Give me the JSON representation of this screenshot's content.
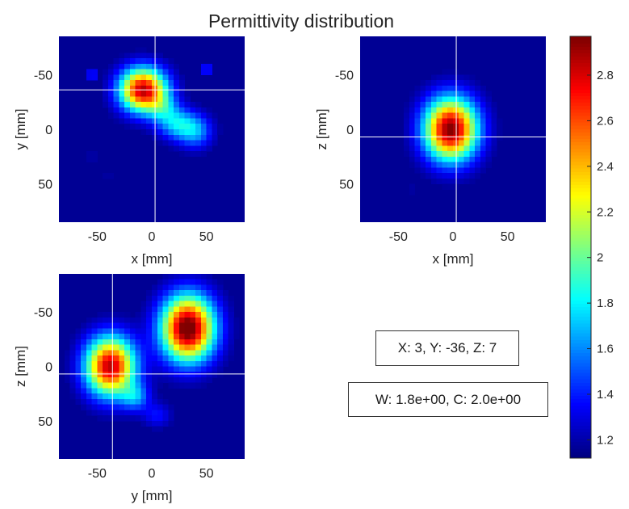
{
  "title": "Permittivity distribution",
  "coordinate_readout": "X: 3, Y: -36, Z: 7",
  "window_readout": "W: 1.8e+00, C: 2.0e+00",
  "colormap": "jet",
  "chart_data": [
    {
      "type": "heatmap",
      "name": "axial-slice",
      "xlabel": "x [mm]",
      "ylabel": "y [mm]",
      "xlim": [
        -85,
        85
      ],
      "ylim": [
        -85,
        85
      ],
      "y_reversed": true,
      "xticks": [
        -50,
        0,
        50
      ],
      "yticks": [
        -50,
        0,
        50
      ],
      "crosshair": {
        "x": 3,
        "y": -36
      },
      "blobs": [
        {
          "cx": -8,
          "cy": -36,
          "sx": 15,
          "sy": 14,
          "amp": 1.75
        },
        {
          "cx": 22,
          "cy": -5,
          "sx": 12,
          "sy": 10,
          "amp": 0.55
        },
        {
          "cx": 40,
          "cy": 2,
          "sx": 11,
          "sy": 11,
          "amp": 0.5
        },
        {
          "cx": 10,
          "cy": -20,
          "sx": 10,
          "sy": 9,
          "amp": 0.35
        },
        {
          "cx": -55,
          "cy": -50,
          "sx": 2.5,
          "sy": 2.5,
          "amp": 0.55
        },
        {
          "cx": 50,
          "cy": -55,
          "sx": 2.5,
          "sy": 2.5,
          "amp": 0.6
        },
        {
          "cx": -55,
          "cy": 25,
          "sx": 5,
          "sy": 5,
          "amp": 0.08
        },
        {
          "cx": -40,
          "cy": 42,
          "sx": 4,
          "sy": 4,
          "amp": 0.07
        }
      ]
    },
    {
      "type": "heatmap",
      "name": "coronal-slice",
      "xlabel": "x [mm]",
      "ylabel": "z [mm]",
      "xlim": [
        -85,
        85
      ],
      "ylim": [
        -85,
        85
      ],
      "y_reversed": true,
      "xticks": [
        -50,
        0,
        50
      ],
      "yticks": [
        -50,
        0,
        50
      ],
      "crosshair": {
        "x": 3,
        "y": 7
      },
      "blobs": [
        {
          "cx": -2,
          "cy": 0,
          "sx": 17,
          "sy": 20,
          "amp": 1.85
        },
        {
          "cx": -38,
          "cy": 55,
          "sx": 4,
          "sy": 6,
          "amp": 0.06
        }
      ]
    },
    {
      "type": "heatmap",
      "name": "sagittal-slice",
      "xlabel": "y [mm]",
      "ylabel": "z [mm]",
      "xlim": [
        -85,
        85
      ],
      "ylim": [
        -85,
        85
      ],
      "y_reversed": true,
      "xticks": [
        -50,
        0,
        50
      ],
      "yticks": [
        -50,
        0,
        50
      ],
      "crosshair": {
        "x": -36,
        "y": 7
      },
      "blobs": [
        {
          "cx": -38,
          "cy": 0,
          "sx": 16,
          "sy": 19,
          "amp": 1.75
        },
        {
          "cx": 33,
          "cy": -35,
          "sx": 17,
          "sy": 21,
          "amp": 1.95
        },
        {
          "cx": -15,
          "cy": 28,
          "sx": 9,
          "sy": 9,
          "amp": 0.45
        },
        {
          "cx": 5,
          "cy": 45,
          "sx": 9,
          "sy": 8,
          "amp": 0.25
        }
      ]
    }
  ],
  "colorbar": {
    "min": 1.12,
    "max": 2.97,
    "base": 1.12,
    "ticks": [
      1.2,
      1.4,
      1.6,
      1.8,
      2,
      2.2,
      2.4,
      2.6,
      2.8
    ],
    "tick_labels": [
      "1.2",
      "1.4",
      "1.6",
      "1.8",
      "2",
      "2.2",
      "2.4",
      "2.6",
      "2.8"
    ]
  }
}
